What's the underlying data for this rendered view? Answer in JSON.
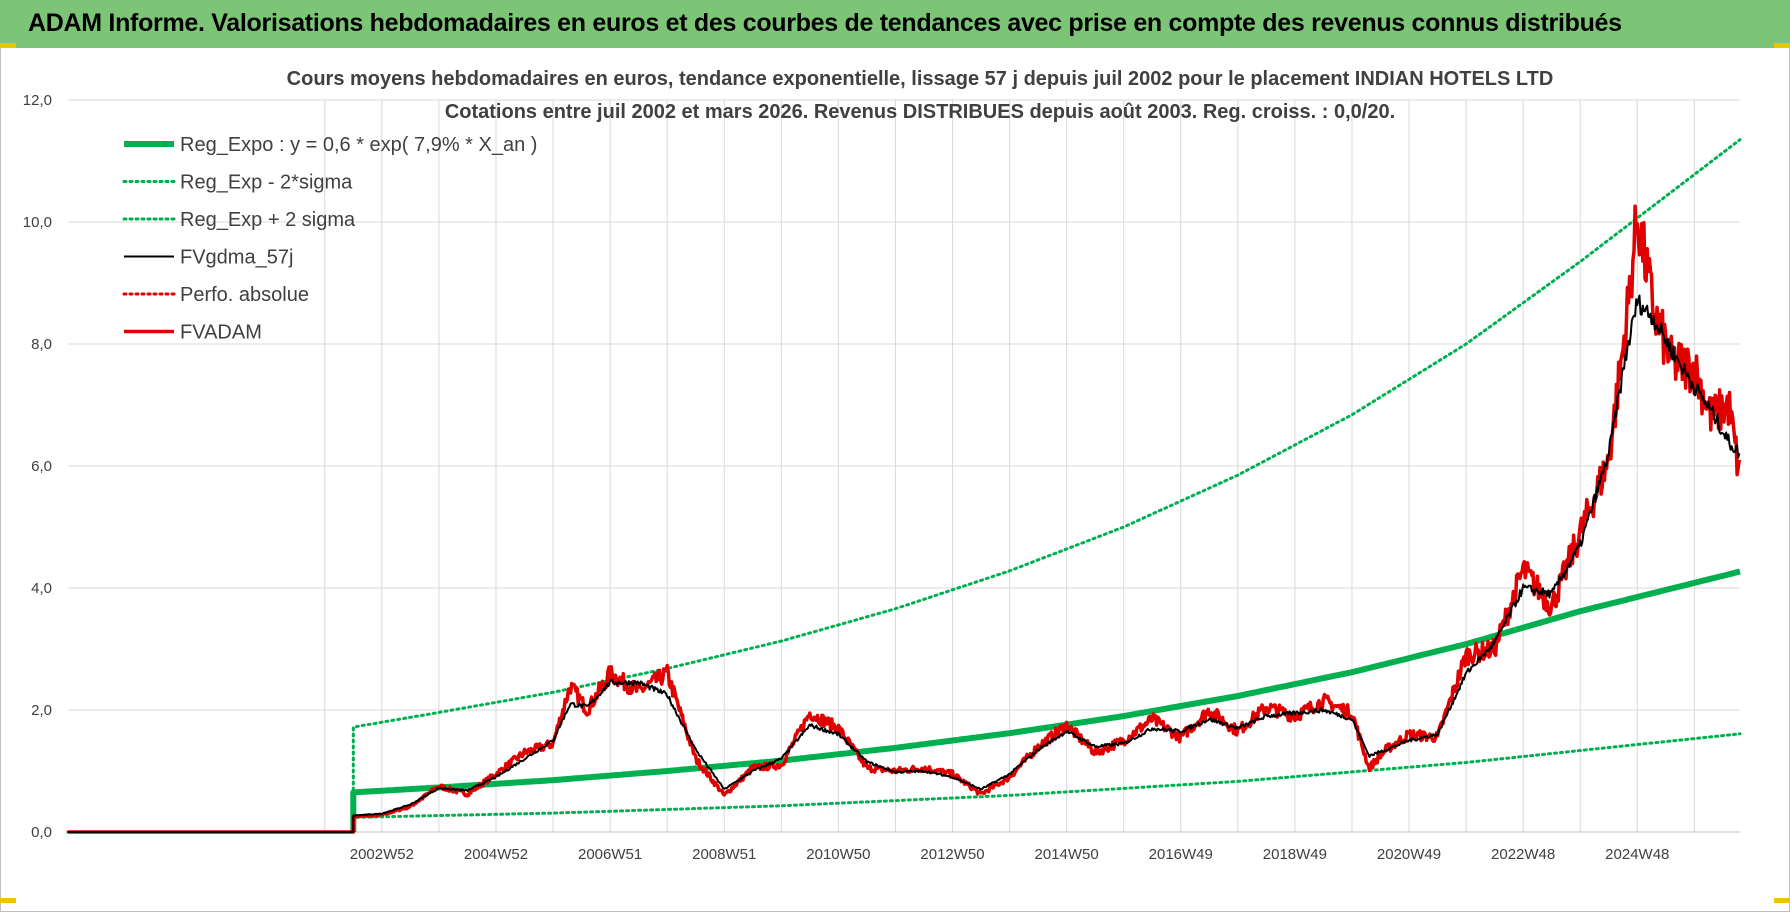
{
  "header": {
    "title": "ADAM Informe. Valorisations hebdomadaires en euros et des courbes de tendances avec prise en compte des revenus connus distribués"
  },
  "chart_data": {
    "type": "line",
    "title": "Cours moyens hebdomadaires en euros, tendance exponentielle, lissage 57 j depuis juil 2002 pour le placement INDIAN HOTELS LTD",
    "subtitle": "Cotations entre juil 2002 et mars 2026. Revenus DISTRIBUES depuis août 2003. Reg. croiss. : 0,0/20.",
    "xlabel": "",
    "ylabel": "",
    "ylim": [
      0,
      12
    ],
    "yticks": [
      "0,0",
      "2,0",
      "4,0",
      "6,0",
      "8,0",
      "10,0",
      "12,0"
    ],
    "xlim": [
      1997.5,
      2026.8
    ],
    "xticks": [
      {
        "label": "2002W52",
        "x": 2003.0
      },
      {
        "label": "2004W52",
        "x": 2005.0
      },
      {
        "label": "2006W51",
        "x": 2007.0
      },
      {
        "label": "2008W51",
        "x": 2009.0
      },
      {
        "label": "2010W50",
        "x": 2011.0
      },
      {
        "label": "2012W50",
        "x": 2013.0
      },
      {
        "label": "2014W50",
        "x": 2015.0
      },
      {
        "label": "2016W49",
        "x": 2017.0
      },
      {
        "label": "2018W49",
        "x": 2019.0
      },
      {
        "label": "2020W49",
        "x": 2021.0
      },
      {
        "label": "2022W48",
        "x": 2023.0
      },
      {
        "label": "2024W48",
        "x": 2025.0
      }
    ],
    "grid": true,
    "legend_position": "top-left",
    "start_year": 2002.5,
    "colors": {
      "green": "#00b050",
      "black": "#000000",
      "red": "#e00000"
    },
    "series": [
      {
        "name": "Reg_Expo : y = 0,6 * exp( 7,9% *  X_an )",
        "style": "solid-thick",
        "color": "#00b050",
        "x": [
          2002.5,
          2004,
          2006,
          2008,
          2010,
          2012,
          2014,
          2016,
          2018,
          2020,
          2022,
          2024,
          2026.8
        ],
        "values": [
          0.65,
          0.73,
          0.85,
          1.0,
          1.17,
          1.38,
          1.62,
          1.9,
          2.23,
          2.62,
          3.08,
          3.62,
          4.27
        ]
      },
      {
        "name": "Reg_Exp - 2*sigma",
        "style": "dotted",
        "color": "#00b050",
        "x": [
          2002.5,
          2006,
          2010,
          2014,
          2018,
          2022,
          2026.8
        ],
        "values": [
          0.24,
          0.31,
          0.43,
          0.6,
          0.83,
          1.14,
          1.61
        ]
      },
      {
        "name": "Reg_Exp + 2 sigma",
        "style": "dotted",
        "color": "#00b050",
        "x": [
          2002.5,
          2004,
          2006,
          2008,
          2010,
          2012,
          2014,
          2016,
          2018,
          2020,
          2022,
          2024,
          2026.8
        ],
        "values": [
          1.72,
          1.96,
          2.29,
          2.68,
          3.13,
          3.66,
          4.28,
          5.0,
          5.85,
          6.84,
          8.0,
          9.35,
          11.35
        ]
      },
      {
        "name": "FVgdma_57j",
        "style": "solid",
        "color": "#000000",
        "x": [
          2002.5,
          2003,
          2003.5,
          2004,
          2004.5,
          2005,
          2005.5,
          2006,
          2006.3,
          2006.6,
          2007,
          2007.5,
          2008,
          2008.5,
          2009,
          2009.5,
          2010,
          2010.5,
          2011,
          2011.5,
          2012,
          2012.5,
          2013,
          2013.5,
          2014,
          2014.5,
          2015,
          2015.5,
          2016,
          2016.5,
          2017,
          2017.5,
          2018,
          2018.5,
          2019,
          2019.5,
          2020,
          2020.3,
          2020.6,
          2021,
          2021.5,
          2022,
          2022.5,
          2023,
          2023.5,
          2024,
          2024.5,
          2024.8,
          2025,
          2025.3,
          2025.6,
          2026,
          2026.3,
          2026.6,
          2026.8
        ],
        "values": [
          0.27,
          0.3,
          0.45,
          0.72,
          0.68,
          0.9,
          1.2,
          1.5,
          2.1,
          2.05,
          2.45,
          2.45,
          2.25,
          1.35,
          0.7,
          1.0,
          1.2,
          1.75,
          1.6,
          1.15,
          0.98,
          1.0,
          0.9,
          0.7,
          0.95,
          1.35,
          1.65,
          1.4,
          1.45,
          1.7,
          1.65,
          1.85,
          1.7,
          1.9,
          1.95,
          2.0,
          1.85,
          1.25,
          1.35,
          1.5,
          1.6,
          2.6,
          3.1,
          4.0,
          3.9,
          4.7,
          6.2,
          7.8,
          8.7,
          8.4,
          7.9,
          7.3,
          6.9,
          6.4,
          6.2
        ]
      },
      {
        "name": "Perfo. absolue",
        "style": "dotted",
        "color": "#e00000",
        "x": [
          1997.5,
          2002.5
        ],
        "values": [
          0,
          0
        ]
      },
      {
        "name": "FVADAM",
        "style": "solid-thick",
        "color": "#e00000",
        "x": [
          2002.5,
          2003,
          2003.5,
          2004,
          2004.5,
          2005,
          2005.5,
          2006,
          2006.3,
          2006.6,
          2007,
          2007.5,
          2008,
          2008.5,
          2009,
          2009.5,
          2010,
          2010.5,
          2011,
          2011.5,
          2012,
          2012.5,
          2013,
          2013.5,
          2014,
          2014.5,
          2015,
          2015.5,
          2016,
          2016.5,
          2017,
          2017.5,
          2018,
          2018.5,
          2019,
          2019.5,
          2020,
          2020.3,
          2020.6,
          2021,
          2021.5,
          2022,
          2022.5,
          2023,
          2023.5,
          2024,
          2024.5,
          2024.8,
          2025,
          2025.3,
          2025.6,
          2026,
          2026.3,
          2026.6,
          2026.8
        ],
        "values": [
          0.25,
          0.28,
          0.42,
          0.75,
          0.62,
          0.95,
          1.3,
          1.45,
          2.4,
          2.0,
          2.6,
          2.3,
          2.6,
          1.2,
          0.6,
          1.05,
          1.1,
          1.95,
          1.7,
          1.05,
          1.0,
          1.05,
          0.95,
          0.62,
          0.9,
          1.4,
          1.75,
          1.3,
          1.5,
          1.85,
          1.55,
          2.0,
          1.65,
          2.05,
          1.9,
          2.15,
          1.95,
          1.05,
          1.35,
          1.6,
          1.55,
          2.9,
          3.0,
          4.3,
          3.7,
          4.9,
          6.1,
          8.3,
          10.1,
          8.5,
          7.7,
          7.6,
          6.8,
          7.0,
          5.8
        ]
      }
    ]
  }
}
